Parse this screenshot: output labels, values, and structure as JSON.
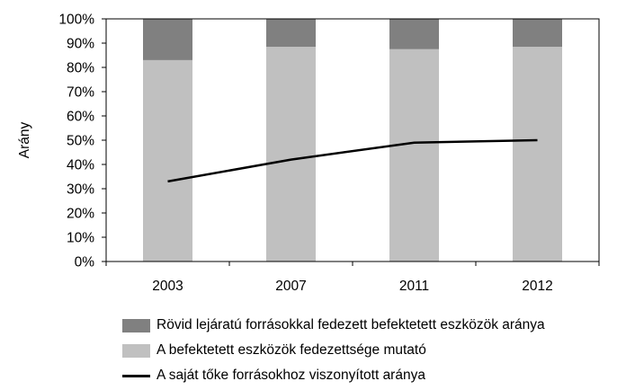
{
  "chart_data": {
    "type": "bar",
    "stacked": true,
    "ylabel": "Arány",
    "ylim": [
      0,
      100
    ],
    "yticks": [
      "0%",
      "10%",
      "20%",
      "30%",
      "40%",
      "50%",
      "60%",
      "70%",
      "80%",
      "90%",
      "100%"
    ],
    "categories": [
      "2003",
      "2007",
      "2011",
      "2012"
    ],
    "grid": false,
    "legend_position": "bottom",
    "series": [
      {
        "name": "A befektetett eszközök fedezettsége mutató",
        "kind": "bar",
        "color": "#c0c0c0",
        "values": [
          83,
          88.5,
          87.5,
          88.5
        ]
      },
      {
        "name": "Rövid lejáratú forrásokkal fedezett befektetett eszközök aránya",
        "kind": "bar",
        "color": "#808080",
        "values": [
          17,
          11.5,
          12.5,
          11.5
        ]
      },
      {
        "name": "A saját tőke forrásokhoz viszonyított aránya",
        "kind": "line",
        "color": "#000000",
        "values": [
          33,
          42,
          49,
          50
        ]
      }
    ]
  },
  "legend": [
    {
      "label": "Rövid lejáratú forrásokkal fedezett befektetett eszközök aránya",
      "color": "#808080",
      "type": "box"
    },
    {
      "label": "A befektetett eszközök fedezettsége mutató",
      "color": "#c0c0c0",
      "type": "box"
    },
    {
      "label": "A saját tőke forrásokhoz viszonyított aránya",
      "color": "#000000",
      "type": "line"
    }
  ]
}
